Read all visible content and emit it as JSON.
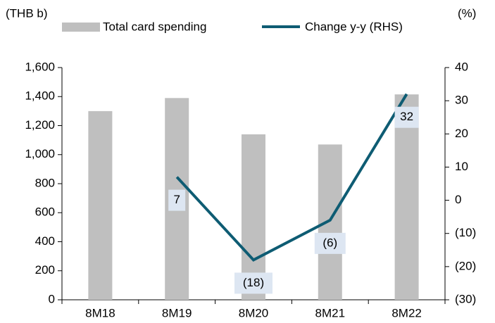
{
  "chart_data": {
    "type": "bar",
    "y_axis_label": "(THB b)",
    "y2_axis_label": "(%)",
    "categories": [
      "8M18",
      "8M19",
      "8M20",
      "8M21",
      "8M22"
    ],
    "series": [
      {
        "name": "Total card spending",
        "type": "bar",
        "color": "#bfbfbf",
        "values": [
          1300,
          1390,
          1140,
          1070,
          1415
        ]
      },
      {
        "name": "Change y-y (RHS)",
        "type": "line",
        "axis": "y2",
        "color": "#0e5c73",
        "values": [
          null,
          7,
          -18,
          -6,
          32
        ],
        "value_labels": [
          null,
          "7",
          "(18)",
          "(6)",
          "32"
        ]
      }
    ],
    "ylim": [
      0,
      1600
    ],
    "yticks": [
      0,
      200,
      400,
      600,
      800,
      {
        "value": 1000,
        "label": "1,000"
      },
      {
        "value": 1200,
        "label": "1,200"
      },
      {
        "value": 1400,
        "label": "1,400"
      },
      {
        "value": 1600,
        "label": "1,600"
      }
    ],
    "y2lim": [
      -30,
      40
    ],
    "y2ticks": [
      {
        "value": -30,
        "label": "(30)"
      },
      {
        "value": -20,
        "label": "(20)"
      },
      {
        "value": -10,
        "label": "(10)"
      },
      0,
      10,
      20,
      30,
      40
    ],
    "legend": "top"
  }
}
